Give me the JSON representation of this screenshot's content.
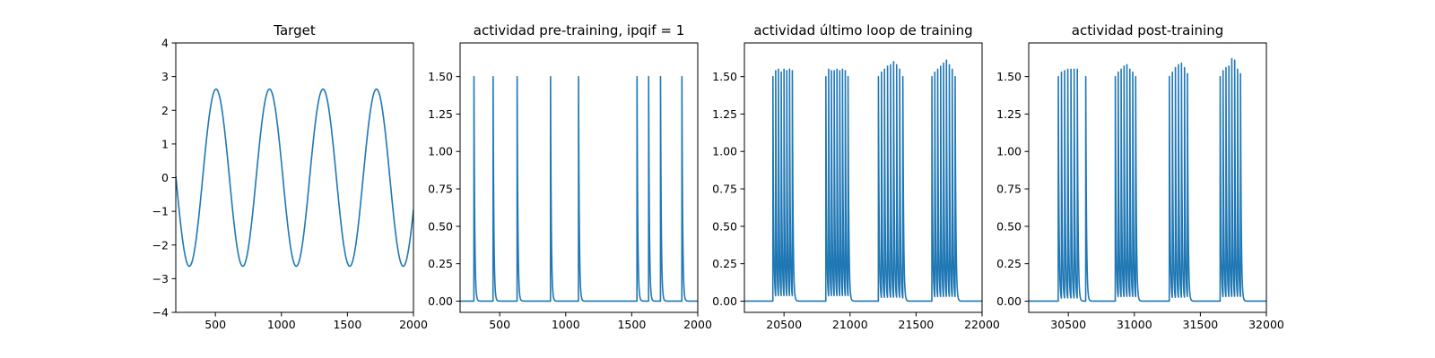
{
  "chart_data": [
    {
      "type": "line",
      "title": "Target",
      "xlim": [
        200,
        2000
      ],
      "ylim": [
        -4,
        4
      ],
      "xticks": [
        500,
        1000,
        1500,
        2000
      ],
      "yticks": [
        -4,
        -3,
        -2,
        -1,
        0,
        1,
        2,
        3,
        4
      ],
      "series": [
        {
          "color": "#1f77b4",
          "kind": "sine",
          "amplitude": 2.63,
          "period": 405,
          "peak_x": 505,
          "x_range": [
            200,
            2000
          ]
        }
      ]
    },
    {
      "type": "line",
      "title": "actividad pre-training, ipqif = 1",
      "xlim": [
        200,
        2000
      ],
      "ylim": [
        -0.075,
        1.725
      ],
      "xticks": [
        500,
        1000,
        1500,
        2000
      ],
      "yticks": [
        0.0,
        0.25,
        0.5,
        0.75,
        1.0,
        1.25,
        1.5
      ],
      "series": [
        {
          "color": "#1f77b4",
          "kind": "spikes",
          "baseline": 0.0,
          "x_range": [
            200,
            2000
          ],
          "spike_times": [
            305,
            450,
            632,
            885,
            1097,
            1540,
            1628,
            1718,
            1880
          ],
          "spike_heights": [
            1.5,
            1.5,
            1.5,
            1.5,
            1.5,
            1.5,
            1.5,
            1.5,
            1.5
          ]
        }
      ]
    },
    {
      "type": "line",
      "title": "actividad último loop de training",
      "xlim": [
        20200,
        22000
      ],
      "ylim": [
        -0.075,
        1.725
      ],
      "xticks": [
        20500,
        21000,
        21500,
        22000
      ],
      "yticks": [
        0.0,
        0.25,
        0.5,
        0.75,
        1.0,
        1.25,
        1.5
      ],
      "series": [
        {
          "color": "#1f77b4",
          "kind": "bursts",
          "baseline": 0.0,
          "x_range": [
            20200,
            22000
          ],
          "bursts": [
            {
              "times": [
                20416,
                20437,
                20458,
                20479,
                20500,
                20521,
                20542,
                20563
              ],
              "heights": [
                1.5,
                1.54,
                1.55,
                1.53,
                1.55,
                1.54,
                1.55,
                1.54
              ]
            },
            {
              "times": [
                20817,
                20838,
                20859,
                20880,
                20901,
                20922,
                20943,
                20964,
                20985
              ],
              "heights": [
                1.5,
                1.55,
                1.54,
                1.54,
                1.55,
                1.54,
                1.55,
                1.54,
                1.5
              ]
            },
            {
              "times": [
                21215,
                21238,
                21261,
                21284,
                21307,
                21330,
                21353,
                21376,
                21400
              ],
              "heights": [
                1.5,
                1.53,
                1.55,
                1.57,
                1.58,
                1.6,
                1.58,
                1.55,
                1.5
              ]
            },
            {
              "times": [
                21620,
                21642,
                21664,
                21686,
                21708,
                21730,
                21752,
                21774,
                21796
              ],
              "heights": [
                1.5,
                1.53,
                1.55,
                1.57,
                1.59,
                1.61,
                1.58,
                1.55,
                1.5
              ]
            }
          ]
        }
      ]
    },
    {
      "type": "line",
      "title": "actividad post-training",
      "xlim": [
        30200,
        32000
      ],
      "ylim": [
        -0.075,
        1.725
      ],
      "xticks": [
        30500,
        31000,
        31500,
        32000
      ],
      "yticks": [
        0.0,
        0.25,
        0.5,
        0.75,
        1.0,
        1.25,
        1.5
      ],
      "series": [
        {
          "color": "#1f77b4",
          "kind": "bursts",
          "baseline": 0.0,
          "x_range": [
            30200,
            32000
          ],
          "bursts": [
            {
              "times": [
                30424,
                30448,
                30472,
                30496,
                30520,
                30544,
                30568,
                30632
              ],
              "heights": [
                1.5,
                1.53,
                1.54,
                1.55,
                1.55,
                1.55,
                1.55,
                1.5
              ]
            },
            {
              "times": [
                30856,
                30878,
                30900,
                30922,
                30944,
                30966,
                30988,
                31010
              ],
              "heights": [
                1.5,
                1.53,
                1.55,
                1.57,
                1.58,
                1.55,
                1.53,
                1.5
              ]
            },
            {
              "times": [
                31265,
                31288,
                31311,
                31334,
                31357,
                31380,
                31402
              ],
              "heights": [
                1.5,
                1.53,
                1.56,
                1.58,
                1.59,
                1.56,
                1.52
              ]
            },
            {
              "times": [
                31650,
                31672,
                31694,
                31716,
                31738,
                31760,
                31782,
                31804
              ],
              "heights": [
                1.5,
                1.54,
                1.56,
                1.57,
                1.62,
                1.61,
                1.55,
                1.52
              ]
            }
          ]
        }
      ]
    }
  ]
}
